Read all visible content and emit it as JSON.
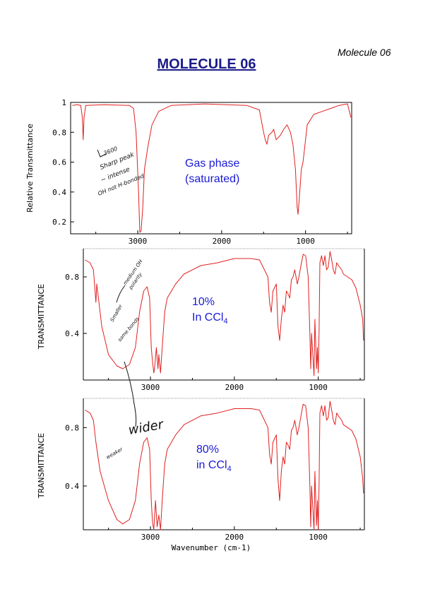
{
  "header": {
    "corner_label": "Molecule 06",
    "title": "MOLECULE 06"
  },
  "chart_data": [
    {
      "type": "line",
      "ylabel": "Relative Transmittance",
      "xlim": [
        3800,
        450
      ],
      "ylim": [
        0.12,
        1.0
      ],
      "x_ticks": [
        3000,
        2000,
        1000
      ],
      "y_ticks": [
        0.2,
        0.4,
        0.6,
        0.8,
        1
      ],
      "annotation": [
        "Gas phase",
        "(saturated)"
      ],
      "handwritten_notes": [
        "3600",
        "Sharp peak",
        "~ intense",
        "OH not H-bonded"
      ],
      "series": [
        {
          "color": "#e02020",
          "points": [
            [
              3780,
              0.98
            ],
            [
              3720,
              0.985
            ],
            [
              3680,
              0.98
            ],
            [
              3660,
              0.9
            ],
            [
              3650,
              0.75
            ],
            [
              3640,
              0.9
            ],
            [
              3620,
              0.98
            ],
            [
              3400,
              0.985
            ],
            [
              3100,
              0.98
            ],
            [
              3050,
              0.96
            ],
            [
              3020,
              0.8
            ],
            [
              2990,
              0.4
            ],
            [
              2975,
              0.13
            ],
            [
              2960,
              0.14
            ],
            [
              2940,
              0.3
            ],
            [
              2920,
              0.55
            ],
            [
              2880,
              0.7
            ],
            [
              2830,
              0.85
            ],
            [
              2750,
              0.94
            ],
            [
              2600,
              0.98
            ],
            [
              2200,
              0.99
            ],
            [
              1700,
              0.98
            ],
            [
              1550,
              0.95
            ],
            [
              1500,
              0.8
            ],
            [
              1480,
              0.75
            ],
            [
              1460,
              0.72
            ],
            [
              1440,
              0.78
            ],
            [
              1400,
              0.8
            ],
            [
              1380,
              0.82
            ],
            [
              1350,
              0.75
            ],
            [
              1300,
              0.78
            ],
            [
              1260,
              0.82
            ],
            [
              1220,
              0.85
            ],
            [
              1180,
              0.8
            ],
            [
              1150,
              0.72
            ],
            [
              1120,
              0.55
            ],
            [
              1100,
              0.3
            ],
            [
              1090,
              0.25
            ],
            [
              1075,
              0.35
            ],
            [
              1050,
              0.55
            ],
            [
              1030,
              0.6
            ],
            [
              1010,
              0.7
            ],
            [
              980,
              0.85
            ],
            [
              900,
              0.92
            ],
            [
              800,
              0.94
            ],
            [
              700,
              0.96
            ],
            [
              600,
              0.98
            ],
            [
              500,
              0.99
            ],
            [
              460,
              0.9
            ]
          ]
        }
      ]
    },
    {
      "type": "line",
      "ylabel": "TRANSMITTANCE",
      "xlim": [
        3800,
        450
      ],
      "ylim": [
        0.07,
        1.0
      ],
      "x_ticks": [
        3000,
        2000,
        1000
      ],
      "y_ticks": [
        0.4,
        0.8
      ],
      "annotation": [
        "10%",
        "In CCl",
        "4"
      ],
      "handwritten_notes": [
        "medium OH",
        "polarity",
        "Smaller",
        "same bonds"
      ],
      "series": [
        {
          "color": "#e02020",
          "points": [
            [
              3780,
              0.92
            ],
            [
              3720,
              0.9
            ],
            [
              3680,
              0.85
            ],
            [
              3660,
              0.7
            ],
            [
              3650,
              0.62
            ],
            [
              3640,
              0.75
            ],
            [
              3620,
              0.65
            ],
            [
              3580,
              0.45
            ],
            [
              3500,
              0.25
            ],
            [
              3400,
              0.17
            ],
            [
              3330,
              0.15
            ],
            [
              3250,
              0.18
            ],
            [
              3180,
              0.3
            ],
            [
              3130,
              0.55
            ],
            [
              3080,
              0.7
            ],
            [
              3040,
              0.73
            ],
            [
              3010,
              0.65
            ],
            [
              2990,
              0.3
            ],
            [
              2975,
              0.2
            ],
            [
              2960,
              0.12
            ],
            [
              2950,
              0.16
            ],
            [
              2930,
              0.3
            ],
            [
              2910,
              0.15
            ],
            [
              2900,
              0.25
            ],
            [
              2880,
              0.12
            ],
            [
              2860,
              0.3
            ],
            [
              2830,
              0.55
            ],
            [
              2800,
              0.65
            ],
            [
              2700,
              0.75
            ],
            [
              2600,
              0.82
            ],
            [
              2400,
              0.88
            ],
            [
              2200,
              0.9
            ],
            [
              2000,
              0.93
            ],
            [
              1800,
              0.93
            ],
            [
              1700,
              0.92
            ],
            [
              1600,
              0.8
            ],
            [
              1580,
              0.62
            ],
            [
              1560,
              0.55
            ],
            [
              1540,
              0.7
            ],
            [
              1500,
              0.75
            ],
            [
              1480,
              0.45
            ],
            [
              1460,
              0.35
            ],
            [
              1440,
              0.5
            ],
            [
              1420,
              0.6
            ],
            [
              1400,
              0.55
            ],
            [
              1380,
              0.7
            ],
            [
              1360,
              0.68
            ],
            [
              1340,
              0.65
            ],
            [
              1320,
              0.78
            ],
            [
              1300,
              0.8
            ],
            [
              1280,
              0.85
            ],
            [
              1250,
              0.75
            ],
            [
              1230,
              0.8
            ],
            [
              1200,
              0.9
            ],
            [
              1180,
              0.96
            ],
            [
              1150,
              0.95
            ],
            [
              1120,
              0.8
            ],
            [
              1100,
              0.4
            ],
            [
              1090,
              0.15
            ],
            [
              1080,
              0.4
            ],
            [
              1060,
              0.2
            ],
            [
              1050,
              0.1
            ],
            [
              1040,
              0.5
            ],
            [
              1020,
              0.15
            ],
            [
              1010,
              0.3
            ],
            [
              1000,
              0.12
            ],
            [
              990,
              0.4
            ],
            [
              980,
              0.9
            ],
            [
              960,
              0.95
            ],
            [
              940,
              0.88
            ],
            [
              920,
              0.95
            ],
            [
              900,
              0.85
            ],
            [
              880,
              0.87
            ],
            [
              860,
              0.98
            ],
            [
              840,
              0.92
            ],
            [
              820,
              0.85
            ],
            [
              800,
              0.82
            ],
            [
              780,
              0.9
            ],
            [
              760,
              0.88
            ],
            [
              720,
              0.85
            ],
            [
              700,
              0.82
            ],
            [
              650,
              0.8
            ],
            [
              600,
              0.78
            ],
            [
              550,
              0.72
            ],
            [
              500,
              0.6
            ],
            [
              470,
              0.5
            ],
            [
              460,
              0.35
            ]
          ]
        }
      ]
    },
    {
      "type": "line",
      "ylabel": "TRANSMITTANCE",
      "xlabel": "Wavenumber (cm-1)",
      "xlim": [
        3800,
        450
      ],
      "ylim": [
        0.1,
        1.0
      ],
      "x_ticks": [
        3000,
        2000,
        1000
      ],
      "y_ticks": [
        0.4,
        0.8
      ],
      "annotation": [
        "80%",
        "in CCl",
        "4"
      ],
      "handwritten_notes": [
        "wider",
        "weaker"
      ],
      "series": [
        {
          "color": "#e02020",
          "points": [
            [
              3780,
              0.92
            ],
            [
              3720,
              0.9
            ],
            [
              3680,
              0.85
            ],
            [
              3650,
              0.7
            ],
            [
              3600,
              0.5
            ],
            [
              3500,
              0.3
            ],
            [
              3400,
              0.17
            ],
            [
              3330,
              0.14
            ],
            [
              3250,
              0.17
            ],
            [
              3180,
              0.3
            ],
            [
              3130,
              0.55
            ],
            [
              3080,
              0.7
            ],
            [
              3040,
              0.73
            ],
            [
              3010,
              0.65
            ],
            [
              2990,
              0.3
            ],
            [
              2975,
              0.15
            ],
            [
              2960,
              0.1
            ],
            [
              2940,
              0.3
            ],
            [
              2920,
              0.12
            ],
            [
              2900,
              0.2
            ],
            [
              2880,
              0.1
            ],
            [
              2860,
              0.3
            ],
            [
              2830,
              0.55
            ],
            [
              2800,
              0.65
            ],
            [
              2700,
              0.75
            ],
            [
              2600,
              0.82
            ],
            [
              2400,
              0.88
            ],
            [
              2200,
              0.9
            ],
            [
              2000,
              0.93
            ],
            [
              1800,
              0.93
            ],
            [
              1700,
              0.92
            ],
            [
              1600,
              0.8
            ],
            [
              1580,
              0.62
            ],
            [
              1560,
              0.55
            ],
            [
              1540,
              0.7
            ],
            [
              1500,
              0.75
            ],
            [
              1480,
              0.45
            ],
            [
              1460,
              0.3
            ],
            [
              1440,
              0.5
            ],
            [
              1420,
              0.6
            ],
            [
              1400,
              0.55
            ],
            [
              1380,
              0.7
            ],
            [
              1360,
              0.68
            ],
            [
              1340,
              0.65
            ],
            [
              1320,
              0.78
            ],
            [
              1300,
              0.8
            ],
            [
              1280,
              0.85
            ],
            [
              1250,
              0.75
            ],
            [
              1230,
              0.8
            ],
            [
              1200,
              0.9
            ],
            [
              1180,
              0.96
            ],
            [
              1150,
              0.95
            ],
            [
              1120,
              0.8
            ],
            [
              1100,
              0.4
            ],
            [
              1090,
              0.12
            ],
            [
              1080,
              0.4
            ],
            [
              1060,
              0.2
            ],
            [
              1050,
              0.1
            ],
            [
              1040,
              0.5
            ],
            [
              1020,
              0.13
            ],
            [
              1010,
              0.3
            ],
            [
              1000,
              0.1
            ],
            [
              990,
              0.4
            ],
            [
              980,
              0.9
            ],
            [
              960,
              0.95
            ],
            [
              940,
              0.88
            ],
            [
              920,
              0.95
            ],
            [
              900,
              0.85
            ],
            [
              880,
              0.87
            ],
            [
              860,
              0.98
            ],
            [
              840,
              0.92
            ],
            [
              820,
              0.85
            ],
            [
              800,
              0.82
            ],
            [
              780,
              0.9
            ],
            [
              760,
              0.88
            ],
            [
              720,
              0.85
            ],
            [
              700,
              0.82
            ],
            [
              650,
              0.8
            ],
            [
              600,
              0.78
            ],
            [
              550,
              0.72
            ],
            [
              500,
              0.6
            ],
            [
              470,
              0.45
            ],
            [
              460,
              0.35
            ]
          ]
        }
      ]
    }
  ]
}
